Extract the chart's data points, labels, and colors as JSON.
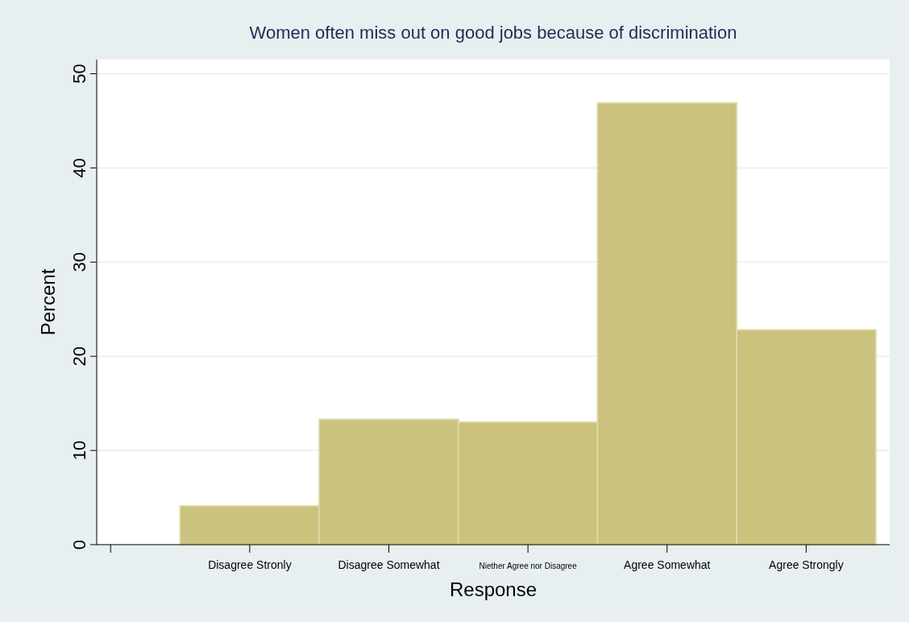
{
  "chart_data": {
    "type": "bar",
    "title": "Women often miss out on good jobs because of discrimination",
    "xlabel": "Response",
    "ylabel": "Percent",
    "categories": [
      null,
      "Disagree Stronly",
      "Disagree Somewhat",
      "Niether Agree nor Disagree",
      "Agree Somewhat",
      "Agree Strongly"
    ],
    "values": [
      null,
      4.1,
      13.3,
      13.0,
      46.9,
      22.8
    ],
    "color": "#cbc27e",
    "ylim": [
      0,
      51.5
    ],
    "yticks": [
      0,
      10,
      20,
      30,
      40,
      50
    ],
    "grid": "y"
  }
}
